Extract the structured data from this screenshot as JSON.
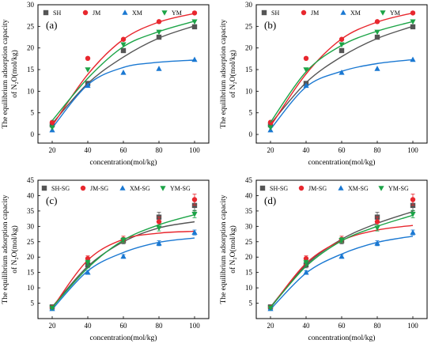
{
  "figure": {
    "panels_title": "",
    "colors": {
      "SH": "#555555",
      "JM": "#e8272e",
      "XM": "#1a78d2",
      "YM": "#1ca447"
    }
  },
  "chart_data": [
    {
      "type": "scatter",
      "panel_label": "(a)",
      "xlabel": "concentration(mol/kg)",
      "ylabel_line1": "The equilibrium adsorption capacity",
      "ylabel_line2": "of N₂O(mol/kg)",
      "x": [
        20,
        40,
        60,
        80,
        100
      ],
      "xlim": [
        12,
        108
      ],
      "ylim": [
        -2,
        30
      ],
      "yticks": [
        0,
        5,
        10,
        15,
        20,
        25,
        30
      ],
      "legend_position": "top",
      "series": [
        {
          "name": "SH",
          "marker": "square",
          "color": "#555555",
          "values": [
            2.2,
            11.8,
            19.4,
            22.5,
            24.9
          ],
          "fit": [
            2.5,
            11.8,
            17.9,
            22.3,
            25.1
          ]
        },
        {
          "name": "JM",
          "marker": "circle",
          "color": "#e8272e",
          "values": [
            2.8,
            17.6,
            22.0,
            26.1,
            28.1
          ],
          "fit": [
            2.0,
            13.9,
            22.0,
            26.0,
            28.0
          ]
        },
        {
          "name": "XM",
          "marker": "triangle-up",
          "color": "#1a78d2",
          "values": [
            1.0,
            11.3,
            14.3,
            15.2,
            17.3
          ],
          "fit": [
            1.5,
            11.5,
            15.5,
            16.7,
            17.2
          ]
        },
        {
          "name": "YM",
          "marker": "triangle-down",
          "color": "#1ca447",
          "values": [
            1.6,
            15.0,
            20.8,
            23.7,
            26.1
          ],
          "fit": [
            3.2,
            13.0,
            20.3,
            23.8,
            26.2
          ]
        }
      ]
    },
    {
      "type": "scatter",
      "panel_label": "(b)",
      "xlabel": "concentration(mol/kg)",
      "ylabel_line1": "The equilibrium adsorption capacity",
      "ylabel_line2": "of N₂O(mol/kg)",
      "x": [
        20,
        40,
        60,
        80,
        100
      ],
      "xlim": [
        12,
        108
      ],
      "ylim": [
        -2,
        30
      ],
      "yticks": [
        0,
        5,
        10,
        15,
        20,
        25,
        30
      ],
      "legend_position": "top",
      "series": [
        {
          "name": "SH",
          "marker": "square",
          "color": "#555555",
          "values": [
            2.2,
            11.8,
            19.4,
            22.5,
            24.9
          ],
          "fit": [
            2.4,
            12.0,
            18.0,
            22.2,
            25.0
          ]
        },
        {
          "name": "JM",
          "marker": "circle",
          "color": "#e8272e",
          "values": [
            2.8,
            17.6,
            22.0,
            26.1,
            28.1
          ],
          "fit": [
            1.9,
            14.0,
            22.1,
            26.0,
            28.1
          ]
        },
        {
          "name": "XM",
          "marker": "triangle-up",
          "color": "#1a78d2",
          "values": [
            1.0,
            11.3,
            14.3,
            15.2,
            17.3
          ],
          "fit": [
            1.2,
            11.0,
            14.6,
            16.4,
            17.3
          ]
        },
        {
          "name": "YM",
          "marker": "triangle-down",
          "color": "#1ca447",
          "values": [
            1.6,
            15.0,
            20.8,
            23.7,
            26.1
          ],
          "fit": [
            2.8,
            14.5,
            20.6,
            23.9,
            26.1
          ]
        }
      ]
    },
    {
      "type": "scatter",
      "panel_label": "(c)",
      "xlabel": "concentration(mol/kg)",
      "ylabel_line1": "The equilibrium adsorption capacity",
      "ylabel_line2": "of N₂O(mol/kg)",
      "x": [
        20,
        40,
        60,
        80,
        100
      ],
      "xlim": [
        12,
        108
      ],
      "ylim": [
        0,
        45
      ],
      "yticks": [
        5,
        10,
        15,
        20,
        25,
        30,
        35,
        40,
        45
      ],
      "legend_position": "top",
      "series": [
        {
          "name": "SH-SG",
          "marker": "square",
          "color": "#555555",
          "values": [
            3.8,
            17.5,
            25.3,
            33.0,
            36.8
          ],
          "errors": [
            0.4,
            1.0,
            1.0,
            1.6,
            1.8
          ],
          "fit": [
            3.8,
            17.0,
            25.0,
            29.5,
            31.5
          ]
        },
        {
          "name": "JM-SG",
          "marker": "circle",
          "color": "#e8272e",
          "values": [
            3.6,
            19.5,
            25.8,
            31.5,
            38.7
          ],
          "errors": [
            0.4,
            0.9,
            1.0,
            1.6,
            1.8
          ],
          "fit": [
            3.4,
            19.0,
            25.8,
            27.8,
            28.4
          ]
        },
        {
          "name": "XM-SG",
          "marker": "triangle-up",
          "color": "#1a78d2",
          "values": [
            3.2,
            15.0,
            20.2,
            24.5,
            28.0
          ],
          "errors": [
            0.3,
            0.6,
            0.6,
            0.8,
            0.8
          ],
          "fit": [
            3.0,
            15.5,
            21.5,
            24.8,
            26.2
          ]
        },
        {
          "name": "YM-SG",
          "marker": "triangle-down",
          "color": "#1ca447",
          "values": [
            3.5,
            18.2,
            25.5,
            29.5,
            34.0
          ],
          "errors": [
            0.3,
            0.8,
            0.8,
            1.0,
            1.2
          ],
          "fit": [
            3.6,
            16.5,
            25.5,
            30.5,
            33.8
          ]
        }
      ]
    },
    {
      "type": "scatter",
      "panel_label": "(d)",
      "xlabel": "concentration(mol/kg)",
      "ylabel_line1": "The equilibrium adsorption capacity",
      "ylabel_line2": "of N₂O(mol/kg)",
      "x": [
        20,
        40,
        60,
        80,
        100
      ],
      "xlim": [
        12,
        108
      ],
      "ylim": [
        0,
        45
      ],
      "yticks": [
        5,
        10,
        15,
        20,
        25,
        30,
        35,
        40,
        45
      ],
      "legend_position": "top",
      "series": [
        {
          "name": "SH-SG",
          "marker": "square",
          "color": "#555555",
          "values": [
            3.8,
            17.5,
            25.3,
            33.0,
            36.8
          ],
          "errors": [
            0.4,
            1.0,
            1.0,
            1.6,
            1.8
          ],
          "fit": [
            3.8,
            17.5,
            25.8,
            31.0,
            34.8
          ]
        },
        {
          "name": "JM-SG",
          "marker": "circle",
          "color": "#e8272e",
          "values": [
            3.6,
            19.5,
            25.8,
            31.5,
            38.7
          ],
          "errors": [
            0.4,
            0.9,
            1.0,
            1.6,
            1.8
          ],
          "fit": [
            3.5,
            18.0,
            25.4,
            28.8,
            30.3
          ]
        },
        {
          "name": "XM-SG",
          "marker": "triangle-up",
          "color": "#1a78d2",
          "values": [
            3.2,
            15.0,
            20.2,
            24.5,
            28.0
          ],
          "errors": [
            0.3,
            0.6,
            0.6,
            0.8,
            0.8
          ],
          "fit": [
            3.0,
            14.8,
            21.0,
            24.8,
            26.8
          ]
        },
        {
          "name": "YM-SG",
          "marker": "triangle-down",
          "color": "#1ca447",
          "values": [
            3.5,
            18.2,
            25.5,
            29.5,
            34.0
          ],
          "errors": [
            0.3,
            0.8,
            0.8,
            1.0,
            1.2
          ],
          "fit": [
            3.6,
            17.0,
            25.3,
            30.0,
            33.6
          ]
        }
      ]
    }
  ]
}
